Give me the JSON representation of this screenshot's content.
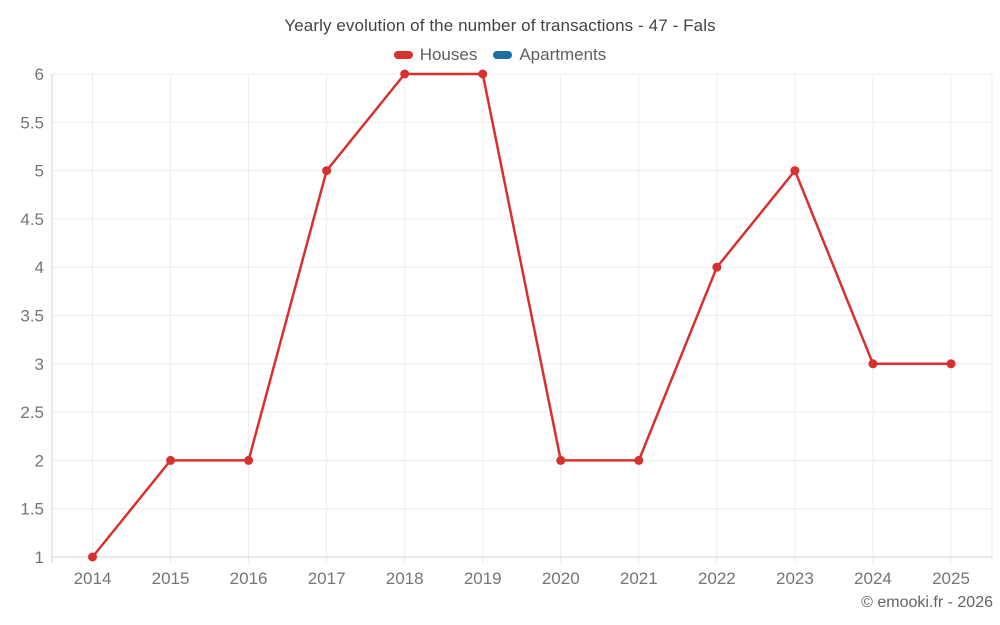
{
  "header": {
    "title": "Yearly evolution of the number of transactions - 47 - Fals"
  },
  "legend": [
    {
      "label": "Houses",
      "color": "#d7312f"
    },
    {
      "label": "Apartments",
      "color": "#1c6ea4"
    }
  ],
  "footer": {
    "copyright": "© emooki.fr - 2026"
  },
  "colors": {
    "background": "#ffffff",
    "gridline": "#ececec",
    "axis_line": "#d6d6d6",
    "tick_label": "#757575",
    "title_text": "#3f4347"
  },
  "chart_data": {
    "type": "line",
    "title": "Yearly evolution of the number of transactions - 47 - Fals",
    "x": [
      2014,
      2015,
      2016,
      2017,
      2018,
      2019,
      2020,
      2021,
      2022,
      2023,
      2024,
      2025
    ],
    "series": [
      {
        "name": "Houses",
        "color": "#d7312f",
        "values": [
          1,
          2,
          2,
          5,
          6,
          6,
          2,
          2,
          4,
          5,
          3,
          3
        ]
      },
      {
        "name": "Apartments",
        "color": "#1c6ea4",
        "values": []
      }
    ],
    "xlabel": "",
    "ylabel": "",
    "ylim": [
      1,
      6
    ],
    "ytick_step": 0.5,
    "grid": true,
    "legend_position": "top",
    "marker": "filled-circle"
  }
}
